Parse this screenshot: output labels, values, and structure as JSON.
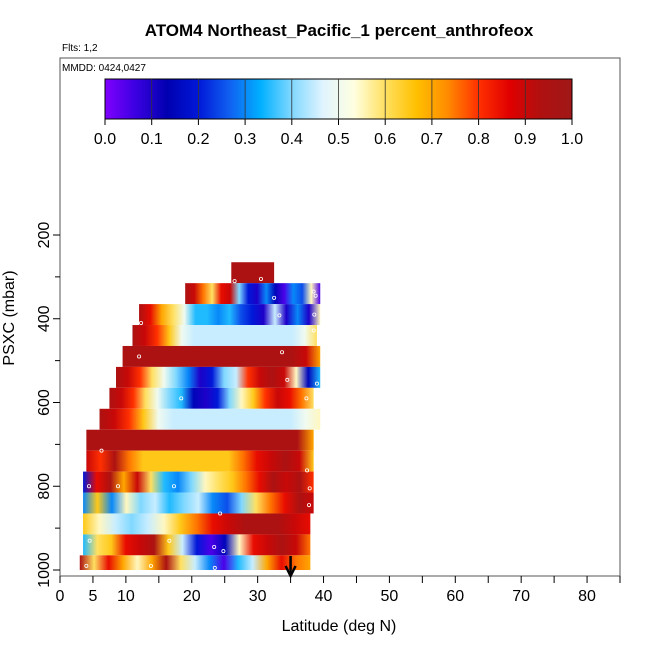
{
  "chart_data": {
    "type": "heatmap",
    "title": "ATOM4 Northeast_Pacific_1 percent_anthrofeox",
    "subtitle_flights": "Flts: 1,2",
    "subtitle_dates": "MMDD: 0424,0427",
    "xlabel": "Latitude (deg N)",
    "ylabel": "PSXC (mbar)",
    "xlim": [
      0,
      85
    ],
    "ylim": [
      1000,
      100
    ],
    "x_ticks": [
      "0",
      "5",
      "10",
      "20",
      "30",
      "40",
      "50",
      "60",
      "70",
      "80"
    ],
    "y_ticks": [
      "200",
      "400",
      "600",
      "800",
      "1000"
    ],
    "colorbar": {
      "range": [
        0,
        1
      ],
      "ticks": [
        "0.0",
        "0.1",
        "0.2",
        "0.3",
        "0.4",
        "0.5",
        "0.6",
        "0.7",
        "0.8",
        "0.9",
        "1.0"
      ],
      "colors": [
        "#8000ff",
        "#3a00e0",
        "#0000b0",
        "#0018d8",
        "#1060f0",
        "#00b0ff",
        "#80d8ff",
        "#e0f4ff",
        "#ffffe0",
        "#ffe060",
        "#ffc000",
        "#ff8c00",
        "#ff3000",
        "#e00000",
        "#b01010",
        "#a01818"
      ]
    },
    "arrow_latitude": 35,
    "layers": [
      {
        "p_top": 265,
        "p_bot": 315,
        "lat_start": 26,
        "lat_end": 32.5,
        "values": [
          0.95,
          0.95
        ]
      },
      {
        "p_top": 315,
        "p_bot": 365,
        "lat_start": 19,
        "lat_end": 39.5,
        "values": [
          0.95,
          0.9,
          0.75,
          0.6,
          0.85,
          0.9,
          0.4,
          0.2,
          0.1,
          0.3,
          0.15,
          0.05,
          0.3,
          0.25,
          0.55,
          0.05
        ]
      },
      {
        "p_top": 365,
        "p_bot": 415,
        "lat_start": 12,
        "lat_end": 39.5,
        "values": [
          0.95,
          0.85,
          0.7,
          0.6,
          0.5,
          0.35,
          0.35,
          0.3,
          0.35,
          0.25,
          0.2,
          0.1,
          0.45,
          0.1,
          0.3,
          0.1,
          0.55
        ]
      },
      {
        "p_top": 415,
        "p_bot": 465,
        "lat_start": 11,
        "lat_end": 39,
        "values": [
          0.95,
          0.9,
          0.8,
          0.65,
          0.5,
          0.45,
          0.45,
          0.45,
          0.45,
          0.45,
          0.45,
          0.45,
          0.45,
          0.45,
          0.5,
          0.6
        ]
      },
      {
        "p_top": 465,
        "p_bot": 515,
        "lat_start": 9.5,
        "lat_end": 39.5,
        "values": [
          0.95,
          0.95,
          0.95,
          0.95,
          0.95,
          0.95,
          0.95,
          0.95,
          0.95,
          0.95,
          0.95,
          0.95,
          0.95,
          0.9,
          0.7
        ]
      },
      {
        "p_top": 515,
        "p_bot": 565,
        "lat_start": 8.5,
        "lat_end": 39.5,
        "values": [
          0.95,
          0.9,
          0.8,
          0.6,
          0.5,
          0.4,
          0.3,
          0.1,
          0.2,
          0.4,
          0.45,
          0.8,
          0.9,
          0.95,
          0.9,
          0.55,
          0.15,
          0.35
        ]
      },
      {
        "p_top": 565,
        "p_bot": 615,
        "lat_start": 7.5,
        "lat_end": 38.5,
        "values": [
          0.95,
          0.9,
          0.8,
          0.6,
          0.5,
          0.4,
          0.35,
          0.15,
          0.1,
          0.2,
          0.4,
          0.55,
          0.65,
          0.8,
          0.9,
          0.85,
          0.75,
          0.6
        ]
      },
      {
        "p_top": 615,
        "p_bot": 665,
        "lat_start": 6,
        "lat_end": 39.5,
        "values": [
          0.95,
          0.9,
          0.8,
          0.65,
          0.5,
          0.45,
          0.45,
          0.45,
          0.45,
          0.45,
          0.45,
          0.45,
          0.45,
          0.45,
          0.5,
          0.55
        ]
      },
      {
        "p_top": 665,
        "p_bot": 715,
        "lat_start": 4,
        "lat_end": 38.5,
        "values": [
          0.95,
          0.95,
          0.95,
          0.95,
          0.95,
          0.95,
          0.95,
          0.95,
          0.95,
          0.95,
          0.95,
          0.95,
          0.95,
          0.95,
          0.7
        ]
      },
      {
        "p_top": 715,
        "p_bot": 765,
        "lat_start": 4,
        "lat_end": 38.5,
        "values": [
          0.9,
          0.8,
          0.95,
          0.75,
          0.65,
          0.65,
          0.65,
          0.65,
          0.65,
          0.65,
          0.65,
          0.75,
          0.85,
          0.9,
          0.95,
          0.9,
          0.65
        ]
      },
      {
        "p_top": 765,
        "p_bot": 815,
        "lat_start": 3.5,
        "lat_end": 38.5,
        "values": [
          0.2,
          0.85,
          0.95,
          0.7,
          0.9,
          0.6,
          0.35,
          0.3,
          0.4,
          0.55,
          0.6,
          0.65,
          0.75,
          0.85,
          0.95,
          0.9,
          0.95,
          0.8
        ]
      },
      {
        "p_top": 815,
        "p_bot": 865,
        "lat_start": 3.5,
        "lat_end": 38.5,
        "values": [
          0.3,
          0.65,
          0.3,
          0.55,
          0.4,
          0.45,
          0.35,
          0.4,
          0.45,
          0.3,
          0.25,
          0.4,
          0.6,
          0.75,
          0.85,
          0.95,
          0.9
        ]
      },
      {
        "p_top": 865,
        "p_bot": 915,
        "lat_start": 3.5,
        "lat_end": 38,
        "values": [
          0.65,
          0.55,
          0.45,
          0.4,
          0.45,
          0.55,
          0.65,
          0.75,
          0.85,
          0.9,
          0.95,
          0.95,
          0.95,
          0.9,
          0.85
        ]
      },
      {
        "p_top": 915,
        "p_bot": 965,
        "lat_start": 3.5,
        "lat_end": 38,
        "values": [
          0.35,
          0.6,
          0.65,
          0.85,
          0.9,
          0.95,
          0.65,
          0.45,
          0.2,
          0.05,
          0.15,
          0.55,
          0.85,
          0.9,
          0.95,
          0.9,
          0.75
        ]
      },
      {
        "p_top": 965,
        "p_bot": 1000,
        "lat_start": 3,
        "lat_end": 38,
        "values": [
          0.95,
          0.6,
          0.85,
          0.7,
          0.55,
          0.7,
          0.95,
          0.6,
          0.45,
          0.3,
          0.05,
          0.35,
          0.45,
          0.7,
          0.85,
          0.75,
          0.7
        ]
      }
    ],
    "sample_points": [
      {
        "lat": 26.5,
        "p": 310
      },
      {
        "lat": 30.5,
        "p": 305
      },
      {
        "lat": 32.5,
        "p": 350
      },
      {
        "lat": 38.5,
        "p": 335
      },
      {
        "lat": 38.8,
        "p": 345
      },
      {
        "lat": 12.3,
        "p": 410
      },
      {
        "lat": 33.3,
        "p": 392
      },
      {
        "lat": 38.6,
        "p": 390
      },
      {
        "lat": 38.5,
        "p": 428
      },
      {
        "lat": 12,
        "p": 490
      },
      {
        "lat": 33.7,
        "p": 480
      },
      {
        "lat": 34.5,
        "p": 546
      },
      {
        "lat": 39,
        "p": 555
      },
      {
        "lat": 18.4,
        "p": 590
      },
      {
        "lat": 37.4,
        "p": 590
      },
      {
        "lat": 6.3,
        "p": 715
      },
      {
        "lat": 37.5,
        "p": 762
      },
      {
        "lat": 4.4,
        "p": 800
      },
      {
        "lat": 8.8,
        "p": 800
      },
      {
        "lat": 17.3,
        "p": 800
      },
      {
        "lat": 37.9,
        "p": 805
      },
      {
        "lat": 37.8,
        "p": 845
      },
      {
        "lat": 24.3,
        "p": 865
      },
      {
        "lat": 4.5,
        "p": 930
      },
      {
        "lat": 16.6,
        "p": 930
      },
      {
        "lat": 23.4,
        "p": 945
      },
      {
        "lat": 24.8,
        "p": 955
      },
      {
        "lat": 4,
        "p": 990
      },
      {
        "lat": 13.8,
        "p": 990
      },
      {
        "lat": 23.5,
        "p": 995
      }
    ]
  }
}
